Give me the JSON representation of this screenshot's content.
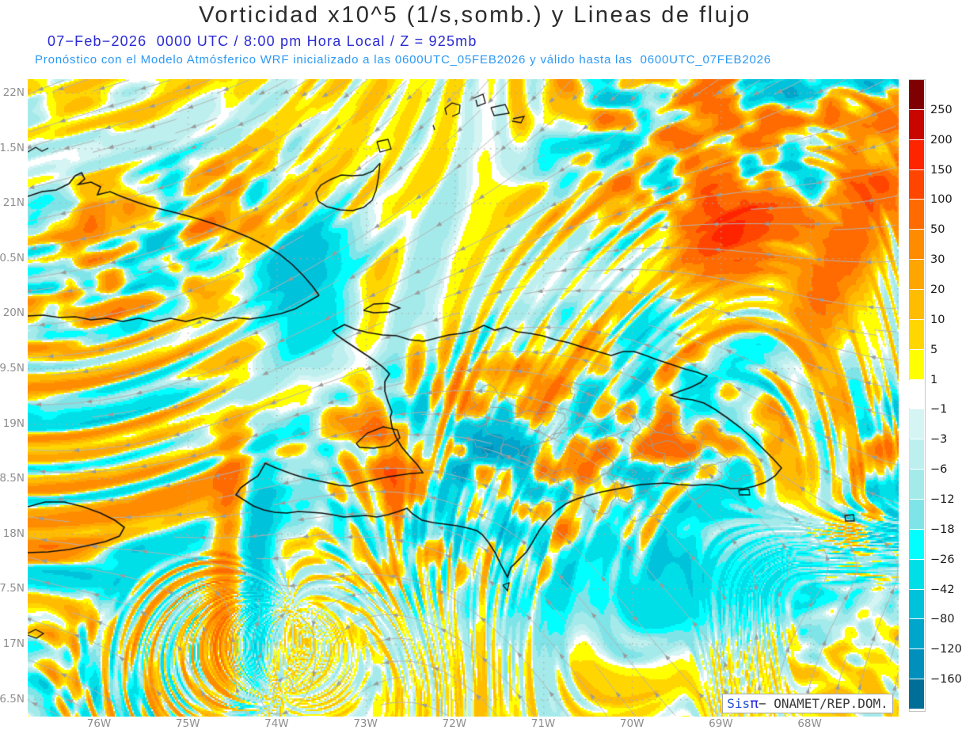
{
  "header": {
    "title": "Vorticidad x10^5 (1/s,somb.) y Lineas de flujo",
    "valid_line": "07−Feb−2026  0000 UTC / 8:00 pm Hora Local / Z = 925mb",
    "model_line": "Pronóstico con el Modelo Atmósferico WRF inicializado a las 0600UTC_05FEB2026 y válido hasta las  0600UTC_07FEB2026"
  },
  "map": {
    "y_axis_labels": [
      "22N",
      "1.5N",
      "21N",
      "0.5N",
      "20N",
      "9.5N",
      "19N",
      "8.5N",
      "18N",
      "7.5N",
      "17N",
      "6.5N"
    ],
    "x_axis_labels": [
      "76W",
      "75W",
      "74W",
      "73W",
      "72W",
      "71W",
      "70W",
      "69W",
      "68W"
    ]
  },
  "colorbar": {
    "labels": [
      "250",
      "200",
      "150",
      "100",
      "50",
      "30",
      "20",
      "10",
      "5",
      "1",
      "−1",
      "−3",
      "−6",
      "−12",
      "−18",
      "−26",
      "−42",
      "−80",
      "−120",
      "−160"
    ],
    "colors": [
      "#7F0000",
      "#C90500",
      "#FF2400",
      "#FF4500",
      "#FF6B00",
      "#FF8C00",
      "#FFA500",
      "#FFBC00",
      "#FFD600",
      "#FFFF00",
      "#FFFFFF",
      "#D5F4F4",
      "#BDEFEF",
      "#A5EAEA",
      "#7FE4E8",
      "#00FFFF",
      "#00DFE8",
      "#00C2DB",
      "#00A5CB",
      "#0090BB",
      "#006E96"
    ]
  },
  "branding": {
    "prefix": "Sis",
    "symbol": "π",
    "separator": "− ",
    "organization": "ONAMET/REP.DOM."
  }
}
